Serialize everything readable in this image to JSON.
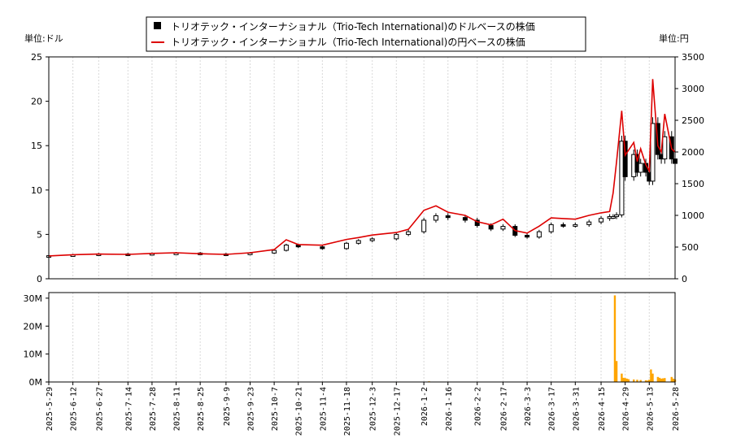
{
  "chart_data": [
    {
      "type": "candlestick+line",
      "legend": [
        {
          "name": "トリオテック・インターナショナル（Trio-Tech International)のドルベースの株価",
          "color": "#000000",
          "marker": "square"
        },
        {
          "name": "トリオテック・インターナショナル（Trio-Tech International)の円ベースの株価",
          "color": "#dd0000",
          "marker": "line"
        }
      ],
      "legend_placement": "top-center",
      "y_left_unit": "単位:ドル",
      "y_right_unit": "単位:円",
      "y_left_lim": [
        0,
        25
      ],
      "y_right_lim": [
        0,
        3500
      ],
      "y_left_ticks": [
        "0",
        "5",
        "10",
        "15",
        "20",
        "25"
      ],
      "y_right_ticks": [
        "0",
        "500",
        "1000",
        "1500",
        "2000",
        "2500",
        "3000",
        "3500"
      ],
      "grid": "vertical",
      "x_start": "2025-05-29",
      "x_end": "2026-05-28",
      "x_ticks": [
        "2025-5-29",
        "2025-6-12",
        "2025-6-27",
        "2025-7-14",
        "2025-7-28",
        "2025-8-11",
        "2025-8-25",
        "2025-9-9",
        "2025-9-23",
        "2025-10-7",
        "2025-10-21",
        "2025-11-4",
        "2025-11-18",
        "2025-12-3",
        "2025-12-17",
        "2026-1-2",
        "2026-1-16",
        "2026-2-2",
        "2026-2-17",
        "2026-3-3",
        "2026-3-17",
        "2026-3-31",
        "2026-4-15",
        "2026-4-29",
        "2026-5-13",
        "2026-5-28"
      ],
      "usd_series": {
        "dates": [
          "2025-05-29",
          "2025-06-12",
          "2025-06-27",
          "2025-07-14",
          "2025-07-28",
          "2025-08-11",
          "2025-08-25",
          "2025-09-09",
          "2025-09-23",
          "2025-10-07",
          "2025-10-14",
          "2025-10-21",
          "2025-11-04",
          "2025-11-18",
          "2025-11-25",
          "2025-12-03",
          "2025-12-17",
          "2025-12-24",
          "2026-01-02",
          "2026-01-09",
          "2026-01-16",
          "2026-01-26",
          "2026-02-02",
          "2026-02-10",
          "2026-02-17",
          "2026-02-24",
          "2026-03-03",
          "2026-03-10",
          "2026-03-17",
          "2026-03-24",
          "2026-03-31",
          "2026-04-08",
          "2026-04-15",
          "2026-04-20",
          "2026-04-22",
          "2026-04-24",
          "2026-04-27",
          "2026-04-29",
          "2026-05-04",
          "2026-05-06",
          "2026-05-08",
          "2026-05-11",
          "2026-05-13",
          "2026-05-15",
          "2026-05-18",
          "2026-05-20",
          "2026-05-22",
          "2026-05-26",
          "2026-05-28"
        ],
        "values": [
          2.6,
          2.7,
          2.8,
          2.75,
          2.85,
          2.9,
          2.8,
          2.75,
          2.9,
          3.2,
          3.8,
          3.6,
          3.4,
          4.0,
          4.3,
          4.5,
          5.0,
          5.3,
          6.6,
          7.1,
          6.9,
          6.6,
          6.0,
          5.6,
          5.9,
          4.9,
          4.7,
          5.3,
          6.1,
          6.0,
          6.1,
          6.4,
          6.8,
          7.0,
          7.0,
          7.2,
          15.5,
          11.5,
          14.0,
          12.0,
          13.0,
          12.0,
          11.0,
          17.5,
          14.0,
          13.5,
          16.0,
          13.5,
          13.0
        ]
      },
      "jpy_series": {
        "dates": [
          "2025-05-29",
          "2025-06-12",
          "2025-06-27",
          "2025-07-14",
          "2025-07-28",
          "2025-08-11",
          "2025-08-25",
          "2025-09-09",
          "2025-09-23",
          "2025-10-07",
          "2025-10-14",
          "2025-10-21",
          "2025-11-04",
          "2025-11-18",
          "2025-11-25",
          "2025-12-03",
          "2025-12-17",
          "2025-12-24",
          "2026-01-02",
          "2026-01-09",
          "2026-01-16",
          "2026-01-26",
          "2026-02-02",
          "2026-02-10",
          "2026-02-17",
          "2026-02-24",
          "2026-03-03",
          "2026-03-10",
          "2026-03-17",
          "2026-03-24",
          "2026-03-31",
          "2026-04-08",
          "2026-04-15",
          "2026-04-20",
          "2026-04-22",
          "2026-04-24",
          "2026-04-27",
          "2026-04-29",
          "2026-05-04",
          "2026-05-06",
          "2026-05-08",
          "2026-05-11",
          "2026-05-13",
          "2026-05-15",
          "2026-05-18",
          "2026-05-20",
          "2026-05-22",
          "2026-05-26",
          "2026-05-28"
        ],
        "values": [
          360,
          380,
          390,
          385,
          400,
          410,
          395,
          385,
          410,
          460,
          615,
          540,
          530,
          620,
          650,
          690,
          730,
          780,
          1080,
          1150,
          1050,
          1000,
          900,
          850,
          940,
          760,
          720,
          830,
          960,
          950,
          940,
          1000,
          1040,
          1060,
          1350,
          1850,
          2650,
          1950,
          2150,
          1850,
          2050,
          1800,
          1700,
          3150,
          2100,
          2000,
          2600,
          2050,
          2000
        ]
      }
    },
    {
      "type": "bar",
      "y_lim": [
        0,
        32000000
      ],
      "y_ticks": [
        "0M",
        "10M",
        "20M",
        "30M"
      ],
      "color": "#ffa500",
      "dates": [
        "2025-06-27",
        "2025-07-01",
        "2025-10-08",
        "2025-12-19",
        "2025-12-26",
        "2026-01-05",
        "2026-01-12",
        "2026-02-05",
        "2026-04-23",
        "2026-04-24",
        "2026-04-27",
        "2026-04-28",
        "2026-04-29",
        "2026-04-30",
        "2026-05-01",
        "2026-05-04",
        "2026-05-06",
        "2026-05-08",
        "2026-05-11",
        "2026-05-12",
        "2026-05-13",
        "2026-05-14",
        "2026-05-15",
        "2026-05-18",
        "2026-05-19",
        "2026-05-20",
        "2026-05-21",
        "2026-05-22",
        "2026-05-26",
        "2026-05-27",
        "2026-05-28"
      ],
      "values": [
        200000,
        150000,
        100000,
        150000,
        100000,
        250000,
        150000,
        100000,
        31000000,
        7500000,
        3000000,
        1500000,
        1400000,
        1200000,
        1000000,
        900000,
        800000,
        700000,
        600000,
        500000,
        800000,
        4500000,
        3000000,
        1800000,
        1500000,
        1200000,
        1300000,
        1400000,
        1800000,
        1200000,
        900000
      ]
    }
  ]
}
